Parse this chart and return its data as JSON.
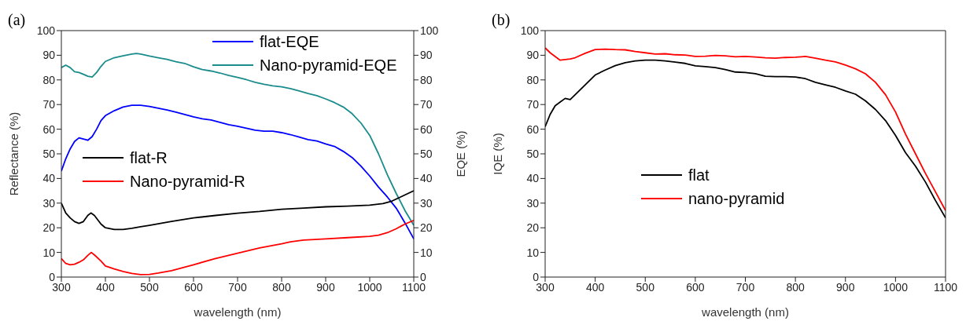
{
  "chart_data": [
    {
      "type": "line",
      "title": "(a)",
      "xlabel": "wavelength (nm)",
      "ylabel": "Reflectance (%)",
      "y2label": "EQE (%)",
      "xlim": [
        300,
        1100
      ],
      "xticks": [
        300,
        400,
        500,
        600,
        700,
        800,
        900,
        1000,
        1100
      ],
      "ylim": [
        0,
        100
      ],
      "yticks": [
        0,
        10,
        20,
        30,
        40,
        50,
        60,
        70,
        80,
        90,
        100
      ],
      "y2lim": [
        0,
        100
      ],
      "y2ticks": [
        0,
        10,
        20,
        30,
        40,
        50,
        60,
        70,
        80,
        90,
        100
      ],
      "grid": false,
      "legend": "top",
      "marker": "none",
      "series": [
        {
          "name": "flat-EQE",
          "color": "#0000ff",
          "axis": "y2",
          "x": [
            300,
            310,
            320,
            330,
            340,
            350,
            360,
            370,
            380,
            390,
            400,
            420,
            440,
            460,
            480,
            500,
            520,
            540,
            560,
            580,
            600,
            620,
            640,
            660,
            680,
            700,
            720,
            740,
            760,
            780,
            800,
            820,
            840,
            860,
            880,
            900,
            920,
            940,
            960,
            980,
            1000,
            1020,
            1040,
            1060,
            1080,
            1100
          ],
          "values": [
            43,
            48,
            52,
            55,
            56.5,
            56,
            55.5,
            57,
            60,
            63.5,
            65.5,
            67.5,
            69,
            69.7,
            69.7,
            69.2,
            68.5,
            67.8,
            66.9,
            66,
            65,
            64.2,
            63.7,
            62.8,
            61.8,
            61.2,
            60.4,
            59.6,
            59.2,
            59.2,
            58.6,
            57.8,
            56.8,
            55.8,
            55.2,
            54,
            53,
            51,
            48.5,
            45,
            41,
            36.5,
            32.5,
            28,
            22,
            15.5
          ]
        },
        {
          "name": "Nano-pyramid-EQE",
          "color": "#1a8c8c",
          "axis": "y2",
          "x": [
            300,
            310,
            320,
            330,
            340,
            350,
            360,
            370,
            380,
            390,
            400,
            420,
            440,
            460,
            470,
            480,
            500,
            520,
            540,
            560,
            580,
            600,
            620,
            640,
            660,
            680,
            700,
            720,
            740,
            760,
            780,
            800,
            820,
            840,
            860,
            880,
            900,
            920,
            940,
            960,
            980,
            1000,
            1020,
            1040,
            1060,
            1080,
            1100
          ],
          "values": [
            85,
            86,
            85,
            83.3,
            83,
            82.3,
            81.5,
            81.2,
            83,
            85.5,
            87.5,
            89,
            89.8,
            90.5,
            90.7,
            90.5,
            89.7,
            89,
            88.3,
            87.4,
            86.7,
            85.3,
            84.2,
            83.6,
            82.8,
            81.8,
            81,
            80.1,
            79,
            78.2,
            77.6,
            77.2,
            76.5,
            75.5,
            74.5,
            73.6,
            72.3,
            70.8,
            69,
            66.3,
            62.5,
            57.5,
            50,
            41.5,
            34,
            27,
            21
          ]
        },
        {
          "name": "flat-R",
          "color": "#000000",
          "axis": "y",
          "x": [
            300,
            310,
            320,
            330,
            340,
            350,
            360,
            367,
            375,
            390,
            400,
            420,
            440,
            460,
            480,
            500,
            550,
            600,
            650,
            700,
            750,
            800,
            850,
            900,
            950,
            1000,
            1030,
            1050,
            1070,
            1100
          ],
          "values": [
            30,
            26,
            24,
            22.5,
            21.8,
            22.5,
            25,
            26,
            25,
            21.5,
            20,
            19.3,
            19.3,
            19.8,
            20.4,
            21,
            22.6,
            24,
            25,
            25.9,
            26.6,
            27.5,
            28,
            28.5,
            28.8,
            29.2,
            29.8,
            30.8,
            32.5,
            35
          ]
        },
        {
          "name": "Nano-pyramid-R",
          "color": "#ff0000",
          "axis": "y",
          "x": [
            300,
            310,
            320,
            330,
            340,
            350,
            360,
            368,
            375,
            390,
            400,
            420,
            440,
            460,
            480,
            500,
            520,
            550,
            600,
            650,
            700,
            750,
            800,
            820,
            850,
            900,
            950,
            1000,
            1020,
            1040,
            1060,
            1080,
            1100
          ],
          "values": [
            7.5,
            5.5,
            5,
            5.2,
            6,
            7,
            8.8,
            10,
            9,
            6.5,
            4.5,
            3.3,
            2.3,
            1.5,
            1,
            1.1,
            1.6,
            2.6,
            5,
            7.5,
            9.7,
            11.8,
            13.5,
            14.3,
            15,
            15.5,
            16,
            16.5,
            17,
            18,
            19.6,
            21.5,
            23
          ]
        }
      ]
    },
    {
      "type": "line",
      "title": "(b)",
      "xlabel": "wavelength (nm)",
      "ylabel": "IQE (%)",
      "xlim": [
        300,
        1100
      ],
      "xticks": [
        300,
        400,
        500,
        600,
        700,
        800,
        900,
        1000,
        1100
      ],
      "ylim": [
        0,
        100
      ],
      "yticks": [
        0,
        10,
        20,
        30,
        40,
        50,
        60,
        70,
        80,
        90,
        100
      ],
      "grid": false,
      "legend": "center left",
      "marker": "none",
      "series": [
        {
          "name": "flat",
          "color": "#000000",
          "x": [
            300,
            310,
            320,
            330,
            340,
            350,
            360,
            380,
            400,
            420,
            440,
            460,
            480,
            500,
            520,
            540,
            560,
            580,
            600,
            620,
            640,
            660,
            680,
            700,
            720,
            740,
            760,
            780,
            800,
            820,
            840,
            860,
            880,
            900,
            920,
            940,
            960,
            980,
            1000,
            1020,
            1040,
            1060,
            1080,
            1100
          ],
          "values": [
            61,
            66,
            69.5,
            71,
            72.5,
            72,
            74,
            78,
            82,
            84,
            85.8,
            87,
            87.7,
            88,
            88,
            87.7,
            87.2,
            86.7,
            85.7,
            85.4,
            85,
            84.2,
            83.2,
            83,
            82.5,
            81.5,
            81.3,
            81.3,
            81.2,
            80.5,
            79,
            78,
            77,
            75.5,
            74.2,
            71.5,
            68,
            63.5,
            57.5,
            50.5,
            45,
            38.5,
            31,
            24
          ]
        },
        {
          "name": "nano-pyramid",
          "color": "#ff0000",
          "x": [
            300,
            310,
            320,
            330,
            350,
            360,
            380,
            400,
            420,
            440,
            460,
            480,
            500,
            520,
            540,
            560,
            580,
            600,
            620,
            640,
            660,
            680,
            700,
            720,
            740,
            760,
            780,
            800,
            820,
            840,
            860,
            880,
            900,
            920,
            940,
            960,
            980,
            1000,
            1020,
            1040,
            1060,
            1080,
            1100
          ],
          "values": [
            93,
            91,
            89.5,
            88,
            88.5,
            89,
            90.8,
            92.3,
            92.5,
            92.3,
            92.2,
            91.5,
            91,
            90.5,
            90.6,
            90.2,
            90.1,
            89.5,
            89.6,
            89.9,
            89.8,
            89.4,
            89.5,
            89.3,
            89,
            88.8,
            89.1,
            89.2,
            89.5,
            88.8,
            88,
            87.3,
            86,
            84.5,
            82.5,
            79,
            74,
            67,
            58,
            50,
            42,
            34.5,
            27
          ]
        }
      ]
    }
  ]
}
